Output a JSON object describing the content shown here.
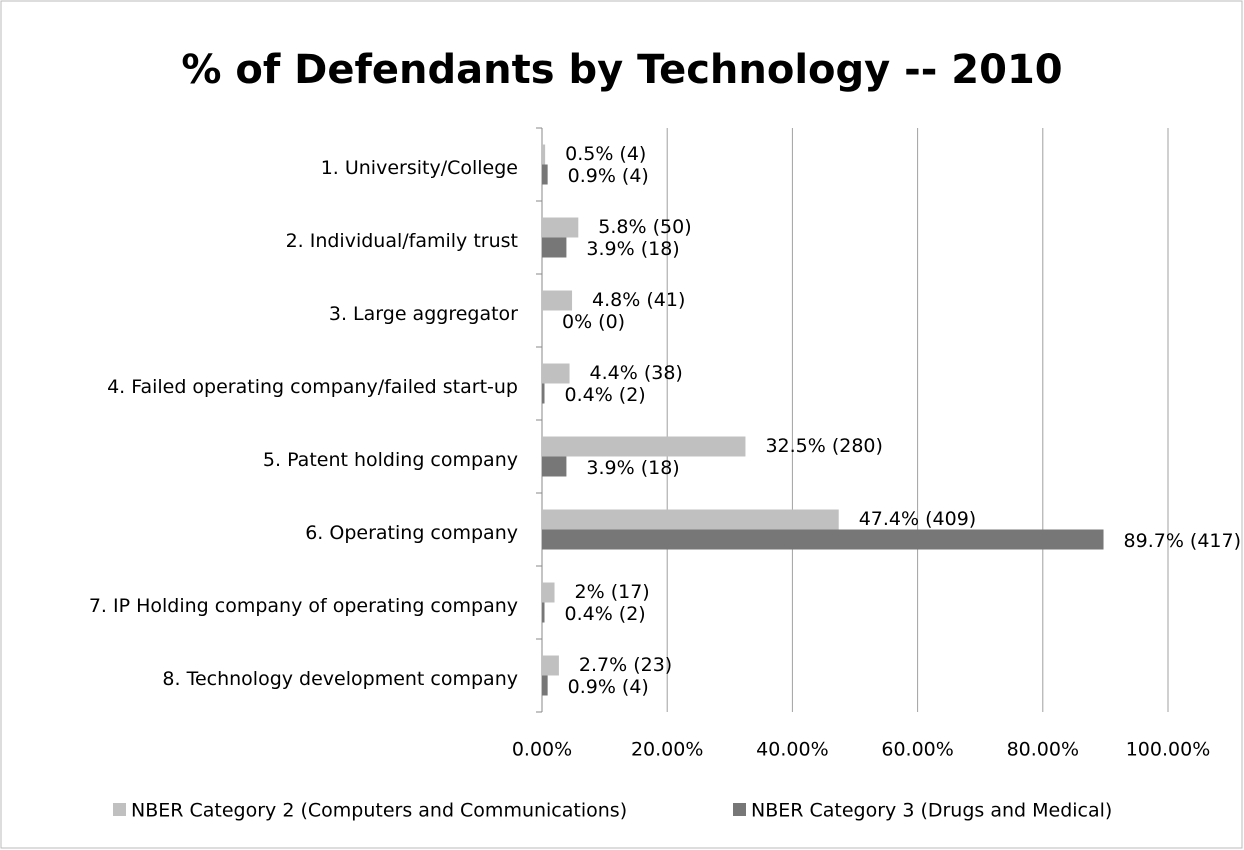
{
  "chart_data": {
    "type": "hbar",
    "title": "% of Defendants by Technology -- 2010",
    "categories": [
      "1. University/College",
      "2. Individual/family trust",
      "3. Large aggregator",
      "4. Failed operating company/failed start-up",
      "5. Patent holding company",
      "6. Operating company",
      "7. IP Holding company of operating company",
      "8. Technology development company"
    ],
    "series": [
      {
        "name": "NBER Category 2 (Computers and Communications)",
        "color": "#c0c0c0",
        "values": [
          0.5,
          5.8,
          4.8,
          4.4,
          32.5,
          47.4,
          2,
          2.7
        ],
        "value_labels": [
          "0.5% (4)",
          "5.8% (50)",
          "4.8% (41)",
          "4.4% (38)",
          "32.5% (280)",
          "47.4% (409)",
          "2% (17)",
          "2.7% (23)"
        ]
      },
      {
        "name": "NBER Category 3 (Drugs and Medical)",
        "color": "#777777",
        "values": [
          0.9,
          3.9,
          0,
          0.4,
          3.9,
          89.7,
          0.4,
          0.9
        ],
        "value_labels": [
          "0.9% (4)",
          "3.9% (18)",
          "0% (0)",
          "0.4% (2)",
          "3.9% (18)",
          "89.7% (417)",
          "0.4% (2)",
          "0.9% (4)"
        ]
      }
    ],
    "xlim": [
      0,
      100
    ],
    "xticks": [
      {
        "value": 0,
        "label": "0.00%"
      },
      {
        "value": 20,
        "label": "20.00%"
      },
      {
        "value": 40,
        "label": "40.00%"
      },
      {
        "value": 60,
        "label": "60.00%"
      },
      {
        "value": 80,
        "label": "80.00%"
      },
      {
        "value": 100,
        "label": "100.00%"
      }
    ],
    "grid": true,
    "legend": "bottom"
  }
}
